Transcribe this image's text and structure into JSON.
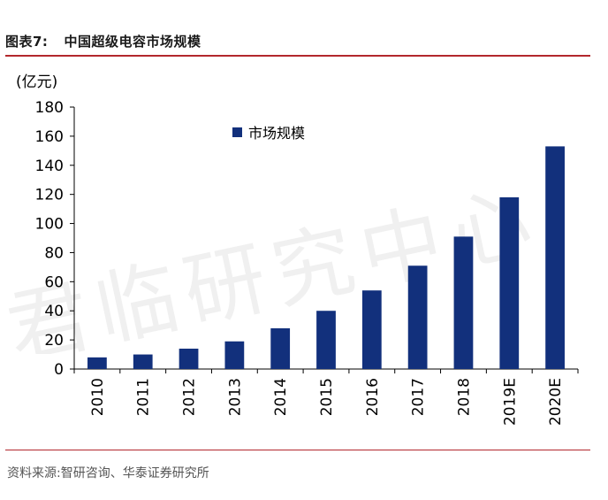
{
  "figure": {
    "number": "图表7:",
    "title": "中国超级电容市场规模",
    "source": "资料来源:智研咨询、华泰证券研究所",
    "watermark": "君临研究中心"
  },
  "colors": {
    "bar": "#12307c",
    "rule": "#b3282d"
  },
  "chart_data": {
    "type": "bar",
    "categories": [
      "2010",
      "2011",
      "2012",
      "2013",
      "2014",
      "2015",
      "2016",
      "2017",
      "2018",
      "2019E",
      "2020E"
    ],
    "series": [
      {
        "name": "市场规模",
        "values": [
          8,
          10,
          14,
          19,
          28,
          40,
          54,
          71,
          91,
          118,
          153
        ]
      }
    ],
    "ylabel": "(亿元)",
    "ylim": [
      0,
      180
    ],
    "yticks": [
      0,
      20,
      40,
      60,
      80,
      100,
      120,
      140,
      160,
      180
    ],
    "grid": false,
    "legend": "top-center"
  }
}
